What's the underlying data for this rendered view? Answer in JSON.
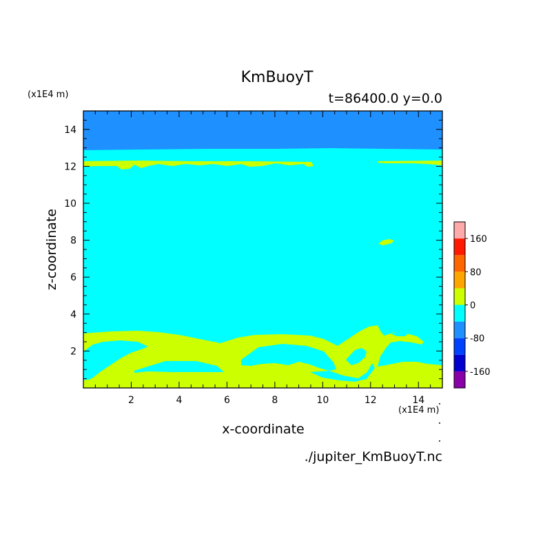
{
  "chart_data": {
    "type": "heatmap",
    "title": "KmBuoyT",
    "subtitle": "t=86400.0 y=0.0",
    "xlabel": "x-coordinate",
    "ylabel": "z-coordinate",
    "x_unit": "(x1E4 m)",
    "y_unit": "(x1E4 m)",
    "source": "./jupiter_KmBuoyT.nc",
    "xlim": [
      0,
      15
    ],
    "ylim": [
      0,
      15
    ],
    "x_ticks": [
      2,
      4,
      6,
      8,
      10,
      12,
      14
    ],
    "y_ticks": [
      2,
      4,
      6,
      8,
      10,
      12,
      14
    ],
    "colorbar": {
      "levels": [
        -200,
        -160,
        -120,
        -80,
        -40,
        0,
        40,
        80,
        120,
        160,
        200
      ],
      "tick_labels": [
        "160",
        "80",
        "0",
        "-80",
        "-160"
      ],
      "tick_values": [
        160,
        80,
        0,
        -80,
        -160
      ],
      "colors": [
        "#8a00a8",
        "#0000d0",
        "#0040ff",
        "#1e90ff",
        "#00ffff",
        "#ccff00",
        "#ffa500",
        "#ff6600",
        "#ff1a00",
        "#ffaaaa"
      ]
    },
    "regions": [
      {
        "value_range": [
          -80,
          -40
        ],
        "color": "#1e90ff",
        "description_area": "upper layer z > 12.8"
      },
      {
        "value_range": [
          -40,
          0
        ],
        "color": "#00ffff",
        "description_area": "bulk domain"
      },
      {
        "value_range": [
          0,
          40
        ],
        "color": "#ccff00",
        "description_area": "near-surface layer z < 3, thin band near z = 12.1, patch near x = 12.5 z = 7.9"
      }
    ]
  }
}
